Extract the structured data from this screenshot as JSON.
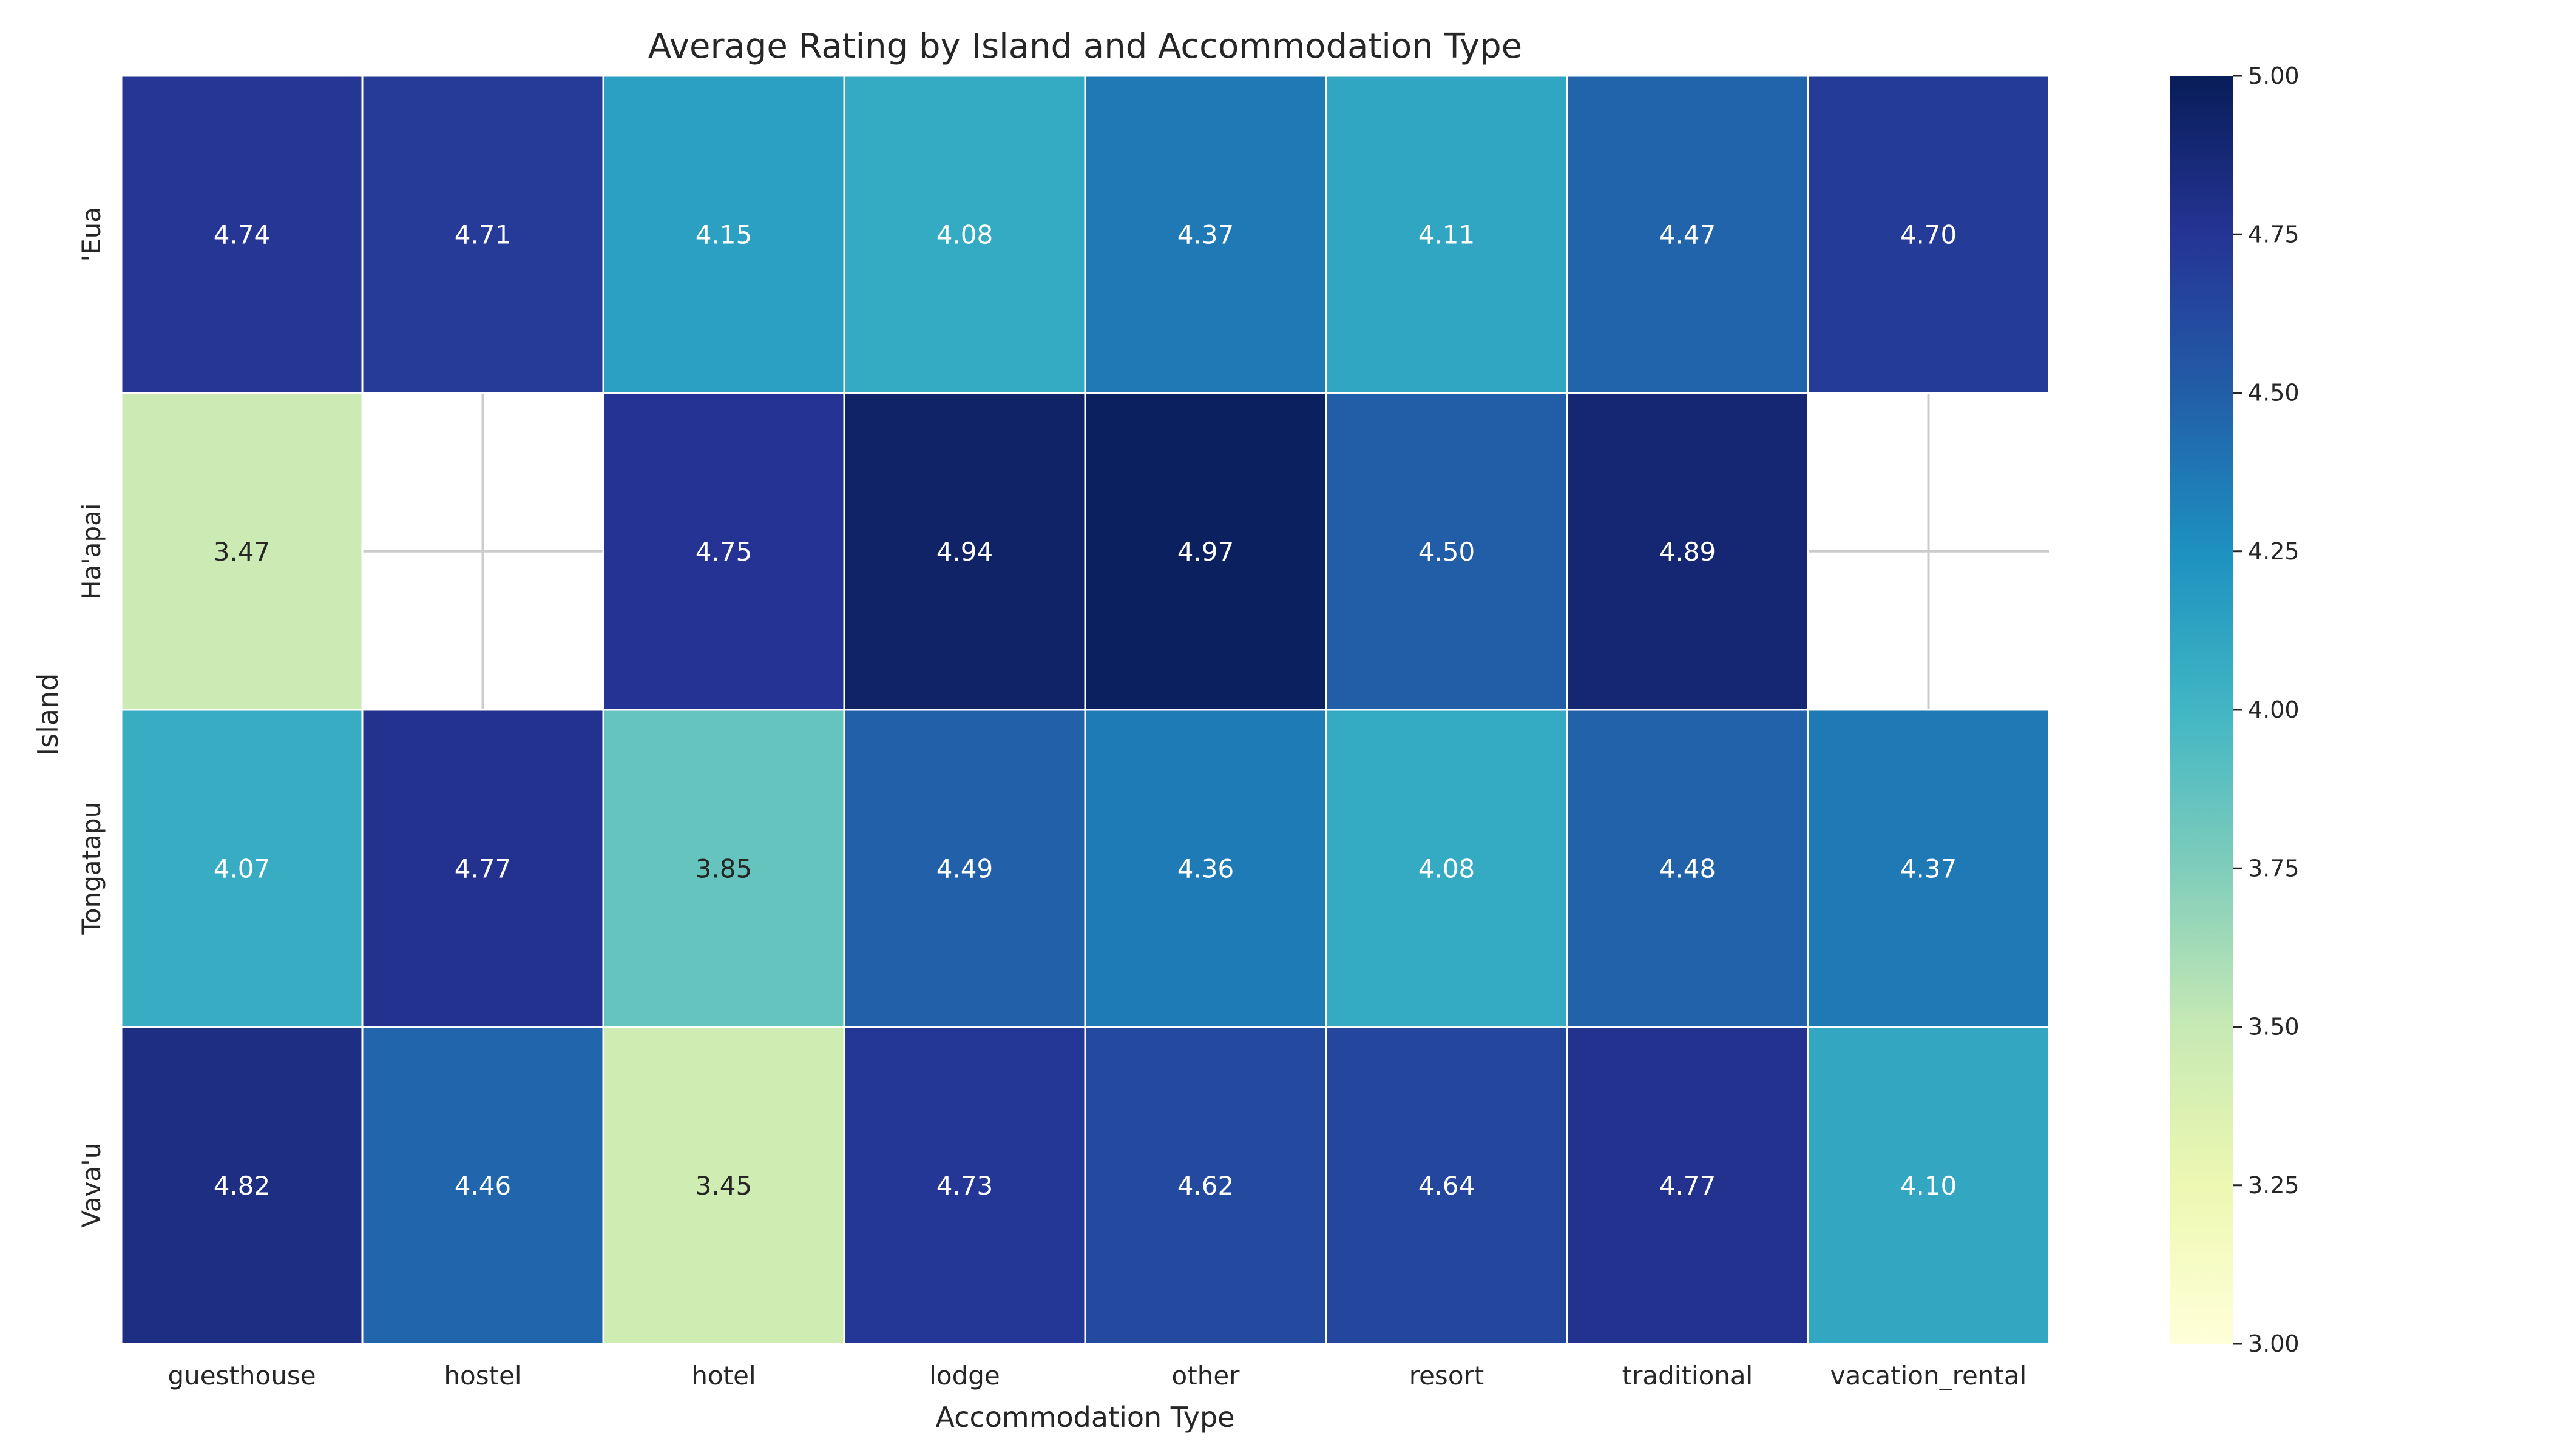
{
  "chart_data": {
    "type": "heatmap",
    "title": "Average Rating by Island and Accommodation Type",
    "xlabel": "Accommodation Type",
    "ylabel": "Island",
    "x_categories": [
      "guesthouse",
      "hostel",
      "hotel",
      "lodge",
      "other",
      "resort",
      "traditional",
      "vacation_rental"
    ],
    "y_categories": [
      "'Eua",
      "Ha'apai",
      "Tongatapu",
      "Vava'u"
    ],
    "values": [
      [
        4.74,
        4.71,
        4.15,
        4.08,
        4.37,
        4.11,
        4.47,
        4.7
      ],
      [
        3.47,
        null,
        4.75,
        4.94,
        4.97,
        4.5,
        4.89,
        null
      ],
      [
        4.07,
        4.77,
        3.85,
        4.49,
        4.36,
        4.08,
        4.48,
        4.37
      ],
      [
        4.82,
        4.46,
        3.45,
        4.73,
        4.62,
        4.64,
        4.77,
        4.1
      ]
    ],
    "value_format": "0.00",
    "colormap": "YlGnBu",
    "vmin": 3.0,
    "vmax": 5.0,
    "colorbar_ticks": [
      "3.00",
      "3.25",
      "3.50",
      "3.75",
      "4.00",
      "4.25",
      "4.50",
      "4.75",
      "5.00"
    ],
    "grid": true
  }
}
